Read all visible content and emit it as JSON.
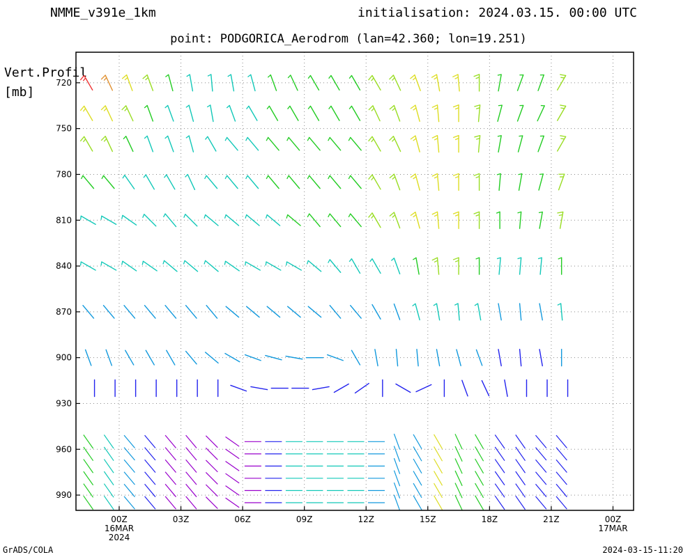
{
  "header": {
    "model": "NMME_v391e_1km",
    "initialisation": "initialisation: 2024.03.15. 00:00 UTC",
    "point": "point: PODGORICA_Aerodrom (lan=42.360; lon=19.251)"
  },
  "yaxis": {
    "label_line1": "Vert.Profil",
    "label_line2": "[mb]"
  },
  "footer": {
    "left": "GrADS/COLA",
    "right": "2024-03-15-11:20"
  },
  "chart_data": {
    "type": "vector-barb-profile",
    "title": "",
    "xlabel": "",
    "ylabel": "Vert.Profil [mb]",
    "x_ticks": [
      {
        "hour": 0,
        "lines": [
          "00Z",
          "16MAR",
          "2024"
        ]
      },
      {
        "hour": 3,
        "lines": [
          "03Z"
        ]
      },
      {
        "hour": 6,
        "lines": [
          "06Z"
        ]
      },
      {
        "hour": 9,
        "lines": [
          "09Z"
        ]
      },
      {
        "hour": 12,
        "lines": [
          "12Z"
        ]
      },
      {
        "hour": 15,
        "lines": [
          "15Z"
        ]
      },
      {
        "hour": 18,
        "lines": [
          "18Z"
        ]
      },
      {
        "hour": 21,
        "lines": [
          "21Z"
        ]
      },
      {
        "hour": 24,
        "lines": [
          "00Z",
          "17MAR"
        ]
      }
    ],
    "xlim": [
      -2.1,
      25
    ],
    "y_ticks": [
      720,
      750,
      780,
      810,
      840,
      870,
      900,
      930,
      960,
      990
    ],
    "ylim": [
      700,
      1000
    ],
    "grid": true,
    "time_start": -1.5,
    "time_step": 1,
    "barb_levels": [
      720,
      740,
      760,
      785,
      810,
      840,
      870,
      900,
      920
    ],
    "barb_time_shift": [
      0,
      0,
      0,
      0,
      0,
      0,
      0,
      0,
      0.3
    ],
    "wind_dir_deg": [
      [
        330,
        335,
        340,
        340,
        345,
        350,
        355,
        350,
        345,
        340,
        335,
        330,
        330,
        330,
        330,
        335,
        340,
        350,
        355,
        0,
        10,
        20,
        20,
        30
      ],
      [
        330,
        335,
        335,
        340,
        340,
        345,
        350,
        340,
        330,
        330,
        330,
        330,
        330,
        330,
        335,
        340,
        345,
        355,
        0,
        5,
        15,
        20,
        25,
        30
      ],
      [
        330,
        335,
        335,
        340,
        340,
        345,
        330,
        320,
        320,
        320,
        320,
        320,
        320,
        320,
        330,
        335,
        345,
        355,
        0,
        5,
        10,
        15,
        20,
        30
      ],
      [
        320,
        320,
        325,
        330,
        330,
        335,
        320,
        320,
        320,
        320,
        320,
        320,
        320,
        320,
        330,
        340,
        345,
        355,
        0,
        0,
        5,
        10,
        15,
        20
      ],
      [
        300,
        300,
        305,
        315,
        320,
        315,
        310,
        310,
        310,
        310,
        310,
        320,
        320,
        320,
        330,
        340,
        345,
        355,
        0,
        0,
        0,
        5,
        10,
        10
      ],
      [
        300,
        300,
        305,
        305,
        310,
        310,
        310,
        305,
        300,
        300,
        300,
        310,
        320,
        330,
        330,
        340,
        350,
        355,
        0,
        0,
        5,
        5,
        5,
        0
      ],
      [
        320,
        320,
        320,
        320,
        320,
        320,
        320,
        310,
        310,
        310,
        310,
        310,
        320,
        320,
        330,
        340,
        345,
        350,
        355,
        350,
        350,
        355,
        350,
        355
      ],
      [
        340,
        340,
        330,
        330,
        330,
        320,
        310,
        300,
        290,
        285,
        280,
        270,
        290,
        330,
        350,
        355,
        355,
        350,
        345,
        340,
        350,
        355,
        350,
        0
      ],
      [
        0,
        0,
        0,
        0,
        0,
        0,
        0,
        290,
        280,
        270,
        270,
        260,
        240,
        235,
        180,
        300,
        245,
        0,
        340,
        335,
        350,
        0,
        0,
        0
      ]
    ],
    "wind_speed_mps": [
      [
        14,
        13,
        12,
        11,
        10,
        9,
        8,
        8,
        9,
        10,
        10,
        10,
        10,
        10,
        11,
        11,
        12,
        12,
        12,
        11,
        10,
        10,
        10,
        11
      ],
      [
        12,
        12,
        11,
        10,
        9,
        8,
        8,
        8,
        9,
        10,
        10,
        10,
        10,
        10,
        11,
        11,
        12,
        12,
        12,
        11,
        10,
        10,
        10,
        11
      ],
      [
        11,
        11,
        10,
        9,
        8,
        8,
        8,
        8,
        9,
        10,
        10,
        10,
        10,
        10,
        11,
        11,
        12,
        12,
        12,
        11,
        10,
        10,
        10,
        11
      ],
      [
        10,
        10,
        9,
        9,
        8,
        8,
        8,
        8,
        9,
        10,
        10,
        10,
        10,
        10,
        11,
        11,
        12,
        12,
        12,
        11,
        10,
        10,
        10,
        11
      ],
      [
        9,
        9,
        8,
        8,
        8,
        8,
        8,
        8,
        9,
        9,
        10,
        10,
        10,
        10,
        11,
        11,
        12,
        12,
        12,
        11,
        10,
        10,
        10,
        11
      ],
      [
        8,
        8,
        8,
        8,
        8,
        8,
        8,
        8,
        8,
        8,
        8,
        8,
        8,
        8,
        8,
        9,
        10,
        11,
        11,
        10,
        9,
        9,
        9,
        10
      ],
      [
        7,
        7,
        7,
        7,
        7,
        7,
        7,
        7,
        7,
        7,
        7,
        7,
        7,
        7,
        7,
        7,
        8,
        9,
        9,
        8,
        7,
        7,
        7,
        8
      ],
      [
        6,
        6,
        6,
        6,
        6,
        6,
        6,
        6,
        6,
        6,
        6,
        6,
        6,
        6,
        6,
        6,
        6,
        7,
        7,
        6,
        5,
        5,
        5,
        6
      ],
      [
        4,
        4,
        4,
        4,
        4,
        4,
        4,
        4,
        4,
        4,
        4,
        4,
        4,
        4,
        4,
        4,
        4,
        4,
        4,
        4,
        4,
        4,
        4,
        4
      ]
    ]
  }
}
